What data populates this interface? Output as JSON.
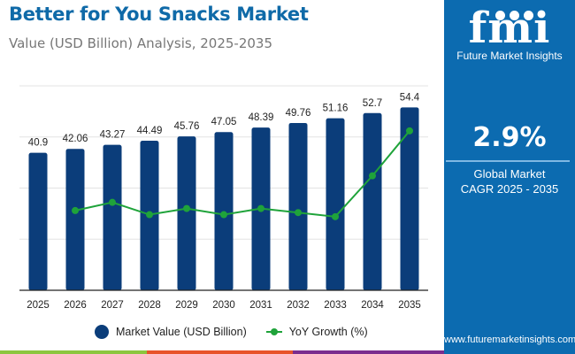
{
  "header": {
    "title": "Better for You Snacks Market",
    "subtitle": "Value (USD Billion) Analysis, 2025-2035"
  },
  "side_panel": {
    "logo_letters": "fmi",
    "logo_name": "Future Market Insights",
    "cagr_value": "2.9%",
    "cagr_label_line1": "Global Market",
    "cagr_label_line2": "CAGR 2025 - 2035",
    "website": "www.futuremarketinsights.com",
    "background_color": "#0c6bb0"
  },
  "bottom_strip_colors": [
    "#8cc63f",
    "#e8542a",
    "#7b2d8e",
    "#0c6bb0"
  ],
  "chart_data": {
    "type": "bar",
    "title": "Better for You Snacks Market",
    "subtitle": "Value (USD Billion) Analysis, 2025-2035",
    "xlabel": "",
    "ylabel": "",
    "categories": [
      "2025",
      "2026",
      "2027",
      "2028",
      "2029",
      "2030",
      "2031",
      "2032",
      "2033",
      "2034",
      "2035"
    ],
    "series": [
      {
        "name": "Market Value (USD Billion)",
        "type": "bar",
        "color": "#0b3d7a",
        "values": [
          40.9,
          42.06,
          43.27,
          44.49,
          45.76,
          47.05,
          48.39,
          49.76,
          51.16,
          52.7,
          54.4
        ],
        "labels": [
          "40.9",
          "42.06",
          "43.27",
          "44.49",
          "45.76",
          "47.05",
          "48.39",
          "49.76",
          "51.16",
          "52.7",
          "54.4"
        ]
      },
      {
        "name": "YoY Growth (%)",
        "type": "line",
        "color": "#1fa33a",
        "axis": "secondary",
        "values": [
          null,
          2.84,
          2.88,
          2.82,
          2.85,
          2.82,
          2.85,
          2.83,
          2.81,
          3.01,
          3.23
        ]
      }
    ],
    "ylim": [
      0,
      60.8
    ],
    "y2lim": [
      2.45,
      3.45
    ],
    "grid": true,
    "legend": "bottom-center"
  }
}
